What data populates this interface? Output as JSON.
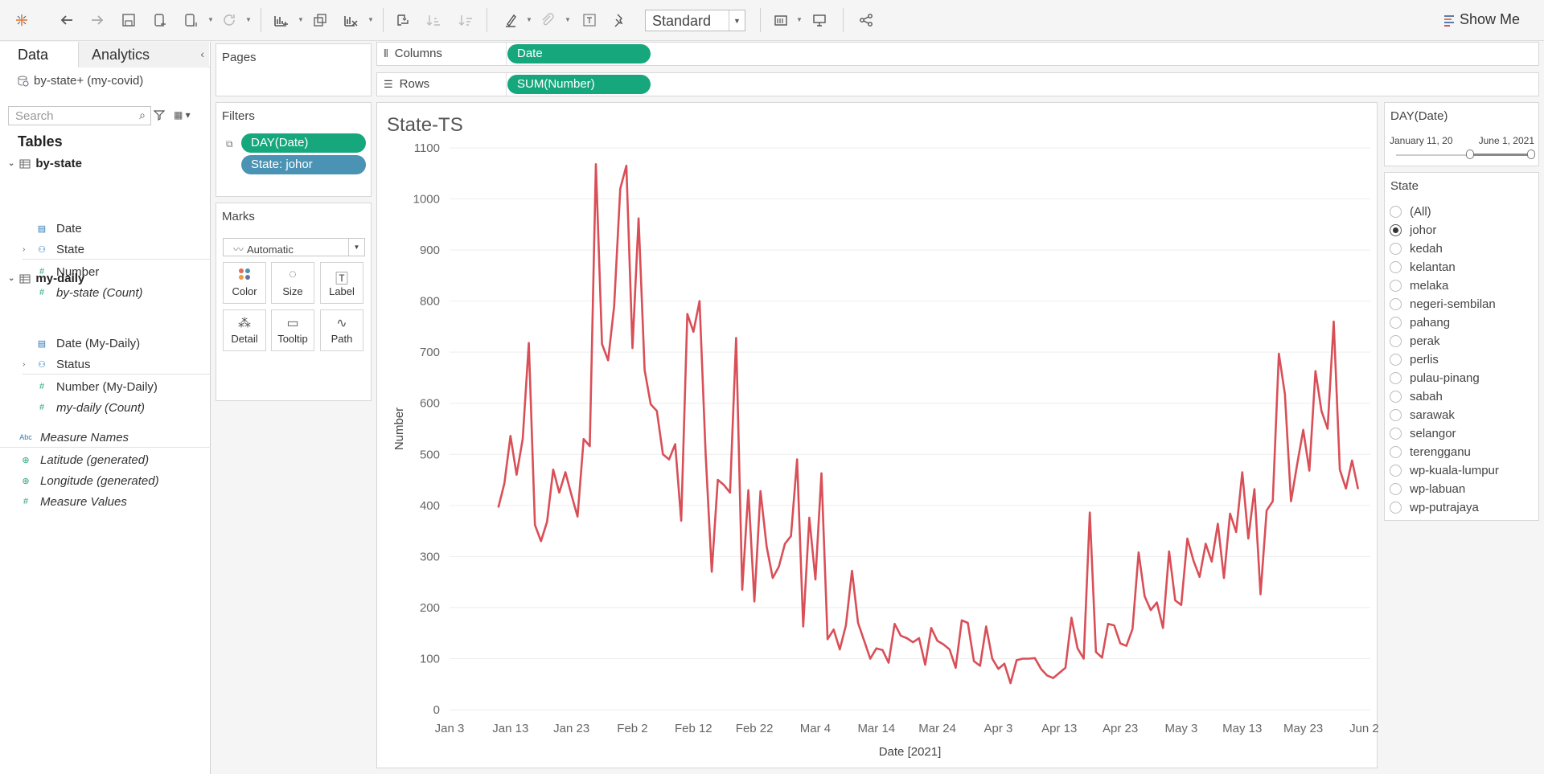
{
  "toolbar": {
    "view_mode": "Standard",
    "show_me": "Show Me"
  },
  "datapane": {
    "tabs": [
      "Data",
      "Analytics"
    ],
    "datasource": "by-state+ (my-covid)",
    "search_placeholder": "Search",
    "tables_heading": "Tables",
    "tables": [
      {
        "name": "by-state",
        "fields": [
          {
            "label": "Date",
            "kind": "date"
          },
          {
            "label": "State",
            "kind": "hier"
          },
          {
            "label": "Number",
            "kind": "measure"
          },
          {
            "label": "by-state (Count)",
            "kind": "measure-italic"
          }
        ]
      },
      {
        "name": "my-daily",
        "fields": [
          {
            "label": "Date (My-Daily)",
            "kind": "date"
          },
          {
            "label": "Status",
            "kind": "hier"
          },
          {
            "label": "Number (My-Daily)",
            "kind": "measure"
          },
          {
            "label": "my-daily (Count)",
            "kind": "measure-italic"
          }
        ]
      }
    ],
    "extra_fields": [
      "Measure Names",
      "Latitude (generated)",
      "Longitude (generated)",
      "Measure Values"
    ],
    "abc_label": "Abc"
  },
  "pages": {
    "title": "Pages"
  },
  "filters": {
    "title": "Filters",
    "pills": [
      "DAY(Date)",
      "State: johor"
    ]
  },
  "marks": {
    "title": "Marks",
    "type": "Automatic",
    "buttons": [
      "Color",
      "Size",
      "Label",
      "Detail",
      "Tooltip",
      "Path"
    ]
  },
  "columns": {
    "label": "Columns",
    "pill": "Date"
  },
  "rows": {
    "label": "Rows",
    "pill": "SUM(Number)"
  },
  "viz": {
    "title": "State-TS"
  },
  "date_filter": {
    "title": "DAY(Date)",
    "start": "January 11, 20",
    "end": "June 1, 2021",
    "position_start": 0.55,
    "position_end": 1.0
  },
  "state_filter": {
    "title": "State",
    "selected": "johor",
    "options": [
      "(All)",
      "johor",
      "kedah",
      "kelantan",
      "melaka",
      "negeri-sembilan",
      "pahang",
      "perak",
      "perlis",
      "pulau-pinang",
      "sabah",
      "sarawak",
      "selangor",
      "terengganu",
      "wp-kuala-lumpur",
      "wp-labuan",
      "wp-putrajaya"
    ]
  },
  "chart_data": {
    "type": "line",
    "title": "State-TS",
    "xlabel": "Date [2021]",
    "ylabel": "Number",
    "x_ticks": [
      "Jan 3",
      "Jan 13",
      "Jan 23",
      "Feb 2",
      "Feb 12",
      "Feb 22",
      "Mar 4",
      "Mar 14",
      "Mar 24",
      "Apr 3",
      "Apr 13",
      "Apr 23",
      "May 3",
      "May 13",
      "May 23",
      "Jun 2"
    ],
    "y_ticks": [
      0,
      100,
      200,
      300,
      400,
      500,
      600,
      700,
      800,
      900,
      1000,
      1100
    ],
    "ylim": [
      0,
      1100
    ],
    "xlim": [
      "2021-01-03",
      "2021-06-03"
    ],
    "line_color": "#d94f57",
    "grid": "horizontal",
    "series": [
      {
        "x": [
          "2021-01-11",
          "2021-01-12",
          "2021-01-13",
          "2021-01-14",
          "2021-01-15",
          "2021-01-16",
          "2021-01-17",
          "2021-01-18",
          "2021-01-19",
          "2021-01-20",
          "2021-01-21",
          "2021-01-22",
          "2021-01-23",
          "2021-01-24",
          "2021-01-25",
          "2021-01-26",
          "2021-01-27",
          "2021-01-28",
          "2021-01-29",
          "2021-01-30",
          "2021-01-31",
          "2021-02-01",
          "2021-02-02",
          "2021-02-03",
          "2021-02-04",
          "2021-02-05",
          "2021-02-06",
          "2021-02-07",
          "2021-02-08",
          "2021-02-09",
          "2021-02-10",
          "2021-02-11",
          "2021-02-12",
          "2021-02-13",
          "2021-02-14",
          "2021-02-15",
          "2021-02-16",
          "2021-02-17",
          "2021-02-18",
          "2021-02-19",
          "2021-02-20",
          "2021-02-21",
          "2021-02-22",
          "2021-02-23",
          "2021-02-24",
          "2021-02-25",
          "2021-02-26",
          "2021-02-27",
          "2021-02-28",
          "2021-03-01",
          "2021-03-02",
          "2021-03-03",
          "2021-03-04",
          "2021-03-05",
          "2021-03-06",
          "2021-03-07",
          "2021-03-08",
          "2021-03-09",
          "2021-03-10",
          "2021-03-11",
          "2021-03-12",
          "2021-03-13",
          "2021-03-14",
          "2021-03-15",
          "2021-03-16",
          "2021-03-17",
          "2021-03-18",
          "2021-03-19",
          "2021-03-20",
          "2021-03-21",
          "2021-03-22",
          "2021-03-23",
          "2021-03-24",
          "2021-03-25",
          "2021-03-26",
          "2021-03-27",
          "2021-03-28",
          "2021-03-29",
          "2021-03-30",
          "2021-03-31",
          "2021-04-01",
          "2021-04-02",
          "2021-04-03",
          "2021-04-04",
          "2021-04-05",
          "2021-04-06",
          "2021-04-07",
          "2021-04-08",
          "2021-04-09",
          "2021-04-10",
          "2021-04-11",
          "2021-04-12",
          "2021-04-13",
          "2021-04-14",
          "2021-04-15",
          "2021-04-16",
          "2021-04-17",
          "2021-04-18",
          "2021-04-19",
          "2021-04-20",
          "2021-04-21",
          "2021-04-22",
          "2021-04-23",
          "2021-04-24",
          "2021-04-25",
          "2021-04-26",
          "2021-04-27",
          "2021-04-28",
          "2021-04-29",
          "2021-04-30",
          "2021-05-01",
          "2021-05-02",
          "2021-05-03",
          "2021-05-04",
          "2021-05-05",
          "2021-05-06",
          "2021-05-07",
          "2021-05-08",
          "2021-05-09",
          "2021-05-10",
          "2021-05-11",
          "2021-05-12",
          "2021-05-13",
          "2021-05-14",
          "2021-05-15",
          "2021-05-16",
          "2021-05-17",
          "2021-05-18",
          "2021-05-19",
          "2021-05-20",
          "2021-05-21",
          "2021-05-22",
          "2021-05-23",
          "2021-05-24",
          "2021-05-25",
          "2021-05-26",
          "2021-05-27",
          "2021-05-28",
          "2021-05-29",
          "2021-05-30",
          "2021-05-31",
          "2021-06-01"
        ],
        "y": [
          396,
          443,
          536,
          460,
          530,
          718,
          362,
          330,
          368,
          470,
          425,
          465,
          420,
          378,
          530,
          516,
          1068,
          716,
          684,
          790,
          1020,
          1065,
          708,
          962,
          665,
          598,
          585,
          500,
          490,
          520,
          370,
          775,
          740,
          800,
          500,
          270,
          450,
          440,
          425,
          728,
          235,
          430,
          212,
          428,
          320,
          258,
          280,
          325,
          340,
          490,
          163,
          376,
          255,
          463,
          138,
          157,
          118,
          165,
          272,
          170,
          135,
          100,
          120,
          117,
          92,
          168,
          145,
          140,
          132,
          140,
          88,
          160,
          135,
          128,
          118,
          82,
          175,
          170,
          95,
          86,
          163,
          100,
          80,
          90,
          52,
          97,
          100,
          100,
          101,
          80,
          67,
          62,
          72,
          82,
          180,
          120,
          100,
          386,
          113,
          102,
          168,
          165,
          130,
          125,
          158,
          308,
          222,
          195,
          210,
          160,
          310,
          214,
          205,
          335,
          292,
          260,
          325,
          290,
          364,
          258,
          384,
          348,
          465,
          335,
          432,
          226,
          390,
          408,
          697,
          618,
          408,
          480,
          548,
          468,
          663,
          585,
          550,
          760,
          470,
          433,
          488,
          432
        ]
      }
    ]
  }
}
